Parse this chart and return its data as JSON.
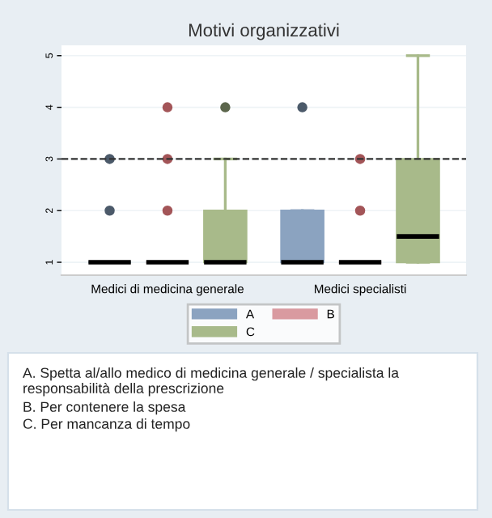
{
  "chart_data": {
    "type": "box",
    "title": "Motivi organizzativi",
    "categories": [
      "Medici di medicina generale",
      "Medici specialisti"
    ],
    "series": [
      {
        "name": "A",
        "color": "#8ba3c0",
        "boxes": [
          {
            "low": 1,
            "q1": 1,
            "median": 1,
            "q3": 1,
            "high": 1,
            "outliers": [
              2,
              3
            ]
          },
          {
            "low": 1,
            "q1": 1,
            "median": 1,
            "q3": 2,
            "high": 2,
            "outliers": [
              4
            ]
          }
        ]
      },
      {
        "name": "B",
        "color": "#d99aa0",
        "boxes": [
          {
            "low": 1,
            "q1": 1,
            "median": 1,
            "q3": 1,
            "high": 1,
            "outliers": [
              2,
              3,
              4
            ]
          },
          {
            "low": 1,
            "q1": 1,
            "median": 1,
            "q3": 1,
            "high": 1,
            "outliers": [
              2,
              3
            ]
          }
        ]
      },
      {
        "name": "C",
        "color": "#a8ba8a",
        "boxes": [
          {
            "low": 1,
            "q1": 1,
            "median": 1,
            "q3": 2,
            "high": 3,
            "outliers": [
              4
            ]
          },
          {
            "low": 1,
            "q1": 1,
            "median": 1.5,
            "q3": 3,
            "high": 5
          }
        ]
      }
    ],
    "ylim": [
      0.75,
      5.2
    ],
    "yticks": [
      1,
      2,
      3,
      4,
      5
    ],
    "grid": "y",
    "legend": "bottom",
    "ref_lines": [
      {
        "axis": "y",
        "value": 3,
        "line_style": "dashed",
        "color": "#333333"
      }
    ],
    "annotations": [
      "A. Spetta al/allo medico di medicina generale / specialista la responsabilità della prescrizione",
      "B. Per contenere la spesa",
      "C. Per mancanza di tempo"
    ]
  }
}
